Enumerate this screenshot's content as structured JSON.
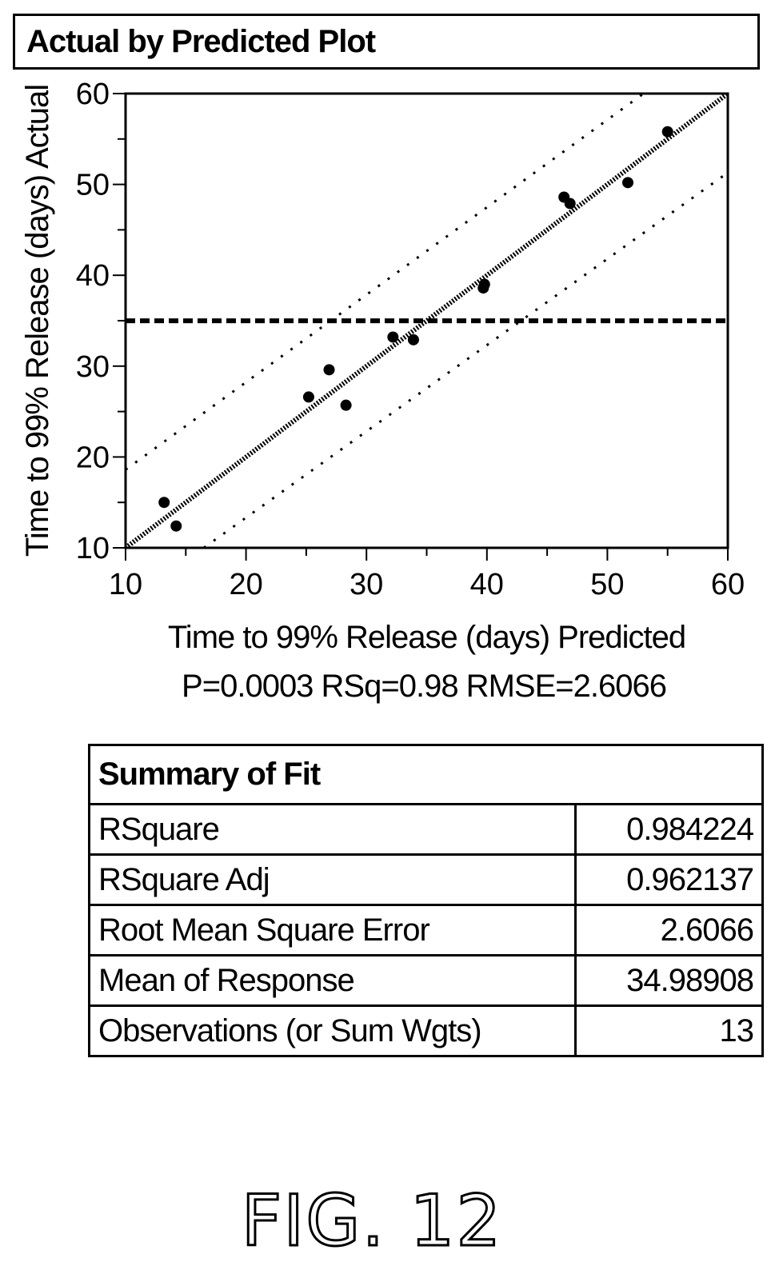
{
  "panel": {
    "title": "Actual by Predicted Plot"
  },
  "chart_data": {
    "type": "scatter",
    "xlabel": "Time to 99% Release (days) Predicted",
    "ylabel": "Time to 99% Release (days) Actual",
    "xlim": [
      10,
      60
    ],
    "ylim": [
      10,
      60
    ],
    "xticks": [
      "10",
      "20",
      "30",
      "40",
      "50",
      "60"
    ],
    "yticks": [
      "10",
      "20",
      "30",
      "40",
      "50",
      "60"
    ],
    "mean_line_y": 34.98908,
    "points": [
      {
        "x": 13.2,
        "y": 15.0
      },
      {
        "x": 14.2,
        "y": 12.4
      },
      {
        "x": 25.2,
        "y": 26.6
      },
      {
        "x": 26.9,
        "y": 29.6
      },
      {
        "x": 28.3,
        "y": 25.7
      },
      {
        "x": 32.2,
        "y": 33.2
      },
      {
        "x": 33.9,
        "y": 32.9
      },
      {
        "x": 39.7,
        "y": 38.6
      },
      {
        "x": 39.8,
        "y": 39.0
      },
      {
        "x": 46.4,
        "y": 48.6
      },
      {
        "x": 46.9,
        "y": 47.9
      },
      {
        "x": 51.7,
        "y": 50.2
      },
      {
        "x": 55.0,
        "y": 55.8
      }
    ],
    "fit_line": [
      [
        10,
        10
      ],
      [
        60,
        60
      ]
    ],
    "confidence_upper": [
      [
        10,
        18.6
      ],
      [
        53,
        60
      ]
    ],
    "confidence_lower": [
      [
        16.5,
        10
      ],
      [
        60,
        51.3
      ]
    ],
    "stats_text": "P=0.0003 RSq=0.98 RMSE=2.6066",
    "grid": false
  },
  "summary": {
    "title": "Summary of Fit",
    "rows": [
      {
        "label": "RSquare",
        "value": "0.984224"
      },
      {
        "label": "RSquare Adj",
        "value": "0.962137"
      },
      {
        "label": "Root Mean Square Error",
        "value": "2.6066"
      },
      {
        "label": "Mean of Response",
        "value": "34.98908"
      },
      {
        "label": "Observations (or Sum Wgts)",
        "value": "13"
      }
    ]
  },
  "figure": {
    "label": "FIG. 12"
  }
}
